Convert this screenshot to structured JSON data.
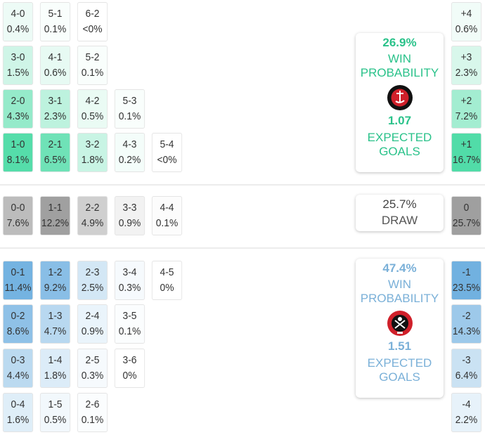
{
  "home": {
    "team": "Charlton Athletic",
    "win_pct": "26.9%",
    "win_label": "WIN",
    "prob_label": "PROBABILITY",
    "xg": "1.07",
    "xg_label1": "EXPECTED",
    "xg_label2": "GOALS",
    "color": "#2ac28a",
    "logo_icon": "charlton-athletic-crest"
  },
  "draw": {
    "pct": "25.7%",
    "label": "DRAW"
  },
  "away": {
    "team": "Sheffield United",
    "win_pct": "47.4%",
    "win_label": "WIN",
    "prob_label": "PROBABILITY",
    "xg": "1.51",
    "xg_label1": "EXPECTED",
    "xg_label2": "GOALS",
    "color": "#7ab0d8",
    "logo_icon": "sheffield-united-crest"
  },
  "home_scores": [
    [
      {
        "s": "4-0",
        "p": "0.4%"
      },
      {
        "s": "5-1",
        "p": "0.1%"
      },
      {
        "s": "6-2",
        "p": "<0%"
      }
    ],
    [
      {
        "s": "3-0",
        "p": "1.5%"
      },
      {
        "s": "4-1",
        "p": "0.6%"
      },
      {
        "s": "5-2",
        "p": "0.1%"
      }
    ],
    [
      {
        "s": "2-0",
        "p": "4.3%"
      },
      {
        "s": "3-1",
        "p": "2.3%"
      },
      {
        "s": "4-2",
        "p": "0.5%"
      },
      {
        "s": "5-3",
        "p": "0.1%"
      }
    ],
    [
      {
        "s": "1-0",
        "p": "8.1%"
      },
      {
        "s": "2-1",
        "p": "6.5%"
      },
      {
        "s": "3-2",
        "p": "1.8%"
      },
      {
        "s": "4-3",
        "p": "0.2%"
      },
      {
        "s": "5-4",
        "p": "<0%"
      }
    ]
  ],
  "draw_scores": [
    {
      "s": "0-0",
      "p": "7.6%"
    },
    {
      "s": "1-1",
      "p": "12.2%"
    },
    {
      "s": "2-2",
      "p": "4.9%"
    },
    {
      "s": "3-3",
      "p": "0.9%"
    },
    {
      "s": "4-4",
      "p": "0.1%"
    }
  ],
  "away_scores": [
    [
      {
        "s": "0-1",
        "p": "11.4%"
      },
      {
        "s": "1-2",
        "p": "9.2%"
      },
      {
        "s": "2-3",
        "p": "2.5%"
      },
      {
        "s": "3-4",
        "p": "0.3%"
      },
      {
        "s": "4-5",
        "p": "0%"
      }
    ],
    [
      {
        "s": "0-2",
        "p": "8.6%"
      },
      {
        "s": "1-3",
        "p": "4.7%"
      },
      {
        "s": "2-4",
        "p": "0.9%"
      },
      {
        "s": "3-5",
        "p": "0.1%"
      }
    ],
    [
      {
        "s": "0-3",
        "p": "4.4%"
      },
      {
        "s": "1-4",
        "p": "1.8%"
      },
      {
        "s": "2-5",
        "p": "0.3%"
      },
      {
        "s": "3-6",
        "p": "0%"
      }
    ],
    [
      {
        "s": "0-4",
        "p": "1.6%"
      },
      {
        "s": "1-5",
        "p": "0.5%"
      },
      {
        "s": "2-6",
        "p": "0.1%"
      }
    ]
  ],
  "margins": {
    "home": [
      {
        "m": "+4",
        "p": "0.6%"
      },
      {
        "m": "+3",
        "p": "2.3%"
      },
      {
        "m": "+2",
        "p": "7.2%"
      },
      {
        "m": "+1",
        "p": "16.7%"
      }
    ],
    "draw": {
      "m": "0",
      "p": "25.7%"
    },
    "away": [
      {
        "m": "-1",
        "p": "23.5%"
      },
      {
        "m": "-2",
        "p": "14.3%"
      },
      {
        "m": "-3",
        "p": "6.4%"
      },
      {
        "m": "-4",
        "p": "2.2%"
      }
    ]
  }
}
